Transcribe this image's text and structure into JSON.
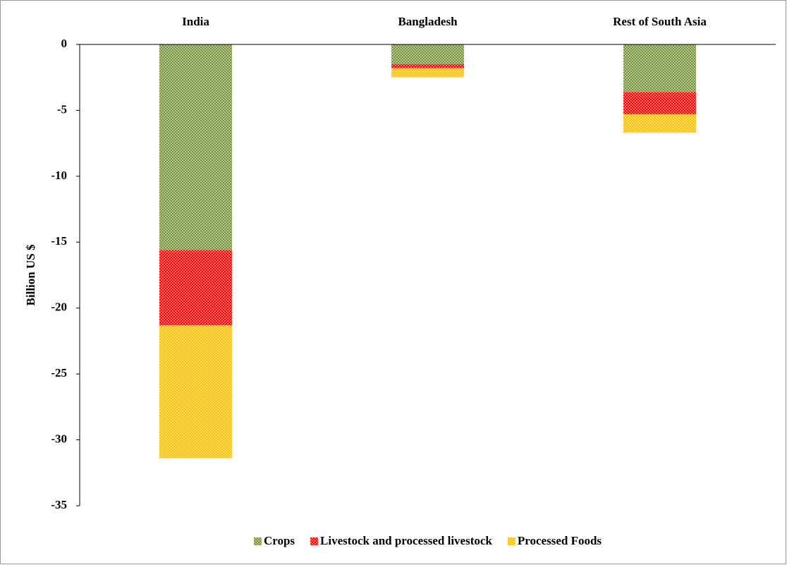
{
  "chart_data": {
    "type": "stacked_bar",
    "categories": [
      "India",
      "Bangladesh",
      "Rest of South Asia"
    ],
    "y_label": "Billion US $",
    "series": [
      {
        "name": "Crops",
        "color": "#77933c",
        "values": [
          -15.6,
          -1.5,
          -3.6
        ]
      },
      {
        "name": "Livestock and processed livestock",
        "color": "#ff0000",
        "values": [
          -5.7,
          -0.3,
          -1.7
        ]
      },
      {
        "name": "Processed Foods",
        "color": "#ffc000",
        "values": [
          -10.1,
          -0.7,
          -1.4
        ]
      }
    ],
    "ylim": [
      -35,
      0
    ],
    "yticks": [
      0,
      -5,
      -10,
      -15,
      -20,
      -25,
      -30,
      -35
    ],
    "legend": "bottom",
    "grid": false
  }
}
